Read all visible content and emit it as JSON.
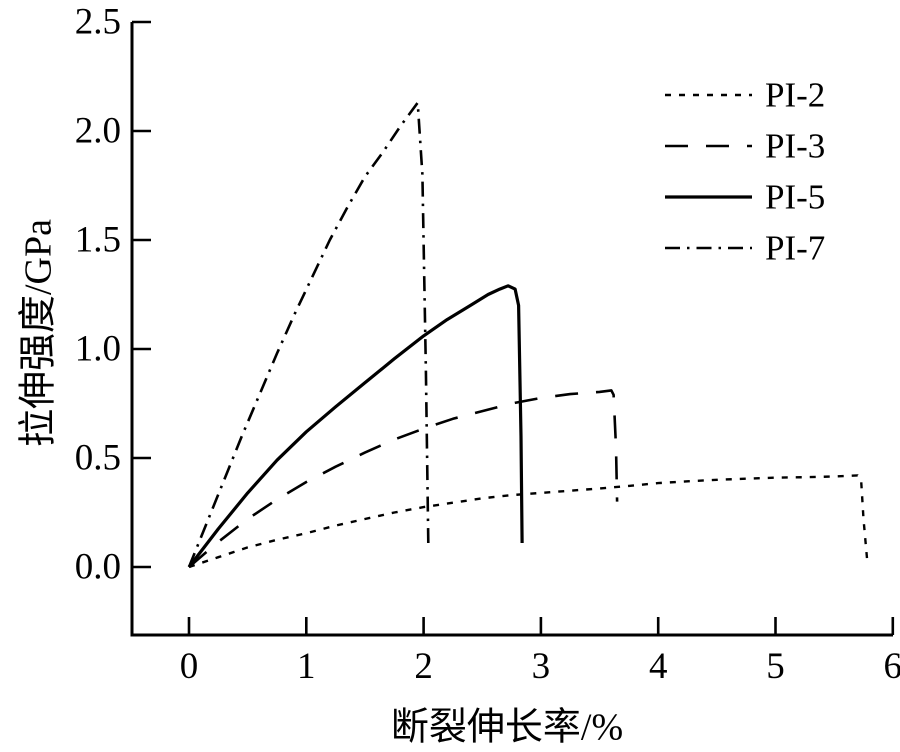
{
  "chart_data": {
    "type": "line",
    "title": "",
    "xlabel": "断裂伸长率/%",
    "ylabel": "拉伸强度/GPa",
    "xlim": [
      -0.49,
      6.0
    ],
    "ylim": [
      -0.31,
      2.5
    ],
    "x_ticks": [
      "0",
      "1",
      "2",
      "3",
      "4",
      "5",
      "6"
    ],
    "x_tick_values": [
      0,
      1,
      2,
      3,
      4,
      5,
      6
    ],
    "y_ticks": [
      "0.0",
      "0.5",
      "1.0",
      "1.5",
      "2.0",
      "2.5"
    ],
    "y_tick_values": [
      0.0,
      0.5,
      1.0,
      1.5,
      2.0,
      2.5
    ],
    "grid": false,
    "legend_position": "upper right",
    "colors": {
      "line": "#000000",
      "background": "#ffffff"
    },
    "series": [
      {
        "name": "PI-2",
        "line_style": "dotted",
        "points": [
          [
            0,
            0
          ],
          [
            0.25,
            0.045
          ],
          [
            0.5,
            0.09
          ],
          [
            0.75,
            0.125
          ],
          [
            1,
            0.155
          ],
          [
            1.25,
            0.19
          ],
          [
            1.5,
            0.22
          ],
          [
            1.75,
            0.25
          ],
          [
            2,
            0.275
          ],
          [
            2.25,
            0.295
          ],
          [
            2.5,
            0.315
          ],
          [
            2.75,
            0.33
          ],
          [
            3,
            0.34
          ],
          [
            3.25,
            0.35
          ],
          [
            3.5,
            0.36
          ],
          [
            3.75,
            0.372
          ],
          [
            4,
            0.385
          ],
          [
            4.25,
            0.393
          ],
          [
            4.5,
            0.4
          ],
          [
            4.75,
            0.405
          ],
          [
            5,
            0.41
          ],
          [
            5.25,
            0.412
          ],
          [
            5.5,
            0.415
          ],
          [
            5.7,
            0.42
          ],
          [
            5.73,
            0.4
          ],
          [
            5.75,
            0.22
          ],
          [
            5.78,
            0.04
          ]
        ]
      },
      {
        "name": "PI-3",
        "line_style": "dashed",
        "points": [
          [
            0,
            0
          ],
          [
            0.25,
            0.115
          ],
          [
            0.5,
            0.22
          ],
          [
            0.75,
            0.31
          ],
          [
            1,
            0.39
          ],
          [
            1.25,
            0.46
          ],
          [
            1.5,
            0.525
          ],
          [
            1.75,
            0.585
          ],
          [
            2,
            0.635
          ],
          [
            2.25,
            0.68
          ],
          [
            2.5,
            0.715
          ],
          [
            2.75,
            0.75
          ],
          [
            3,
            0.775
          ],
          [
            3.25,
            0.793
          ],
          [
            3.5,
            0.803
          ],
          [
            3.6,
            0.81
          ],
          [
            3.62,
            0.79
          ],
          [
            3.64,
            0.55
          ],
          [
            3.65,
            0.3
          ]
        ]
      },
      {
        "name": "PI-5",
        "line_style": "solid",
        "points": [
          [
            0,
            0
          ],
          [
            0.25,
            0.175
          ],
          [
            0.5,
            0.34
          ],
          [
            0.75,
            0.49
          ],
          [
            1,
            0.62
          ],
          [
            1.25,
            0.735
          ],
          [
            1.5,
            0.845
          ],
          [
            1.75,
            0.955
          ],
          [
            2,
            1.06
          ],
          [
            2.2,
            1.135
          ],
          [
            2.4,
            1.2
          ],
          [
            2.55,
            1.25
          ],
          [
            2.65,
            1.275
          ],
          [
            2.72,
            1.29
          ],
          [
            2.78,
            1.275
          ],
          [
            2.81,
            1.2
          ],
          [
            2.83,
            0.6
          ],
          [
            2.84,
            0.11
          ]
        ]
      },
      {
        "name": "PI-7",
        "line_style": "dash-dot",
        "points": [
          [
            0,
            0
          ],
          [
            0.15,
            0.2
          ],
          [
            0.3,
            0.4
          ],
          [
            0.45,
            0.6
          ],
          [
            0.6,
            0.79
          ],
          [
            0.75,
            0.98
          ],
          [
            0.9,
            1.16
          ],
          [
            1.05,
            1.33
          ],
          [
            1.2,
            1.5
          ],
          [
            1.35,
            1.65
          ],
          [
            1.5,
            1.79
          ],
          [
            1.65,
            1.9
          ],
          [
            1.8,
            2.02
          ],
          [
            1.95,
            2.13
          ],
          [
            1.99,
            1.8
          ],
          [
            2.02,
            0.9
          ],
          [
            2.04,
            0.11
          ]
        ]
      }
    ]
  }
}
